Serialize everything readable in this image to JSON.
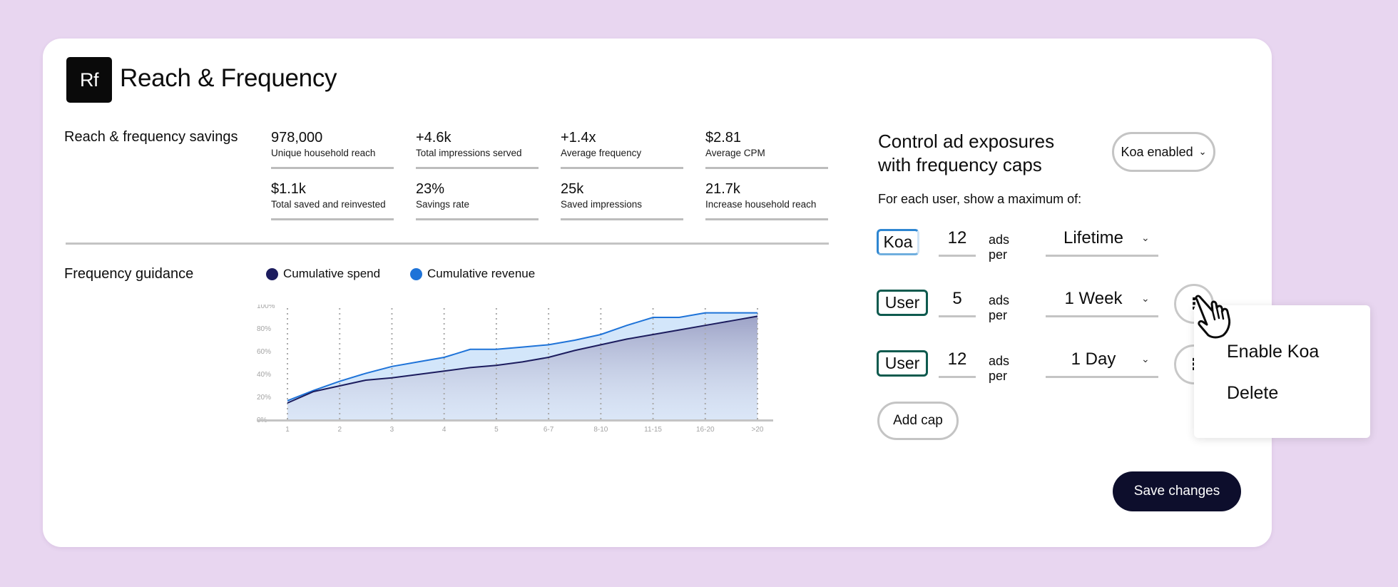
{
  "app": {
    "logo_text": "Rf",
    "title": "Reach & Frequency"
  },
  "savings": {
    "label": "Reach & frequency savings",
    "metrics": [
      {
        "value": "978,000",
        "label": "Unique household reach"
      },
      {
        "value": "+4.6k",
        "label": "Total impressions served"
      },
      {
        "value": "+1.4x",
        "label": "Average frequency"
      },
      {
        "value": "$2.81",
        "label": "Average CPM"
      },
      {
        "value": "$1.1k",
        "label": "Total saved and reinvested"
      },
      {
        "value": "23%",
        "label": "Savings rate"
      },
      {
        "value": "25k",
        "label": "Saved impressions"
      },
      {
        "value": "21.7k",
        "label": "Increase household reach"
      }
    ]
  },
  "guidance": {
    "label": "Frequency guidance",
    "legend": [
      {
        "name": "Cumulative spend",
        "color": "#1c1c5e"
      },
      {
        "name": "Cumulative revenue",
        "color": "#1e73d8"
      }
    ]
  },
  "chart_data": {
    "type": "area",
    "categories": [
      "1",
      "2",
      "3",
      "4",
      "5",
      "6-7",
      "8-10",
      "11-15",
      "16-20",
      ">20"
    ],
    "x": [
      1,
      1.5,
      2,
      2.5,
      3,
      3.5,
      4,
      4.5,
      5,
      5.5,
      6,
      6.5,
      7,
      7.5,
      8,
      8.5,
      9,
      9.5,
      10
    ],
    "y_ticks": [
      "0%",
      "20%",
      "40%",
      "60%",
      "70%",
      "80%",
      "100%"
    ],
    "y_ticks_shown": [
      "0%",
      "20%",
      "40%",
      "60%",
      "80%",
      "100%"
    ],
    "ylim": [
      0,
      100
    ],
    "series": [
      {
        "name": "Cumulative revenue",
        "color": "#1e73d8",
        "values": [
          17,
          26,
          34,
          41,
          47,
          51,
          55,
          62,
          62,
          64,
          66,
          70,
          75,
          83,
          90,
          90,
          94,
          94,
          94
        ]
      },
      {
        "name": "Cumulative spend",
        "color": "#1c1c5e",
        "values": [
          15,
          25,
          30,
          35,
          37,
          40,
          43,
          46,
          48,
          51,
          55,
          61,
          66,
          71,
          75,
          79,
          83,
          87,
          91
        ]
      }
    ],
    "grid": "vertical-dotted",
    "legend_position": "top-left"
  },
  "caps": {
    "title_line1": "Control ad exposures",
    "title_line2": "with frequency caps",
    "koa_button": "Koa enabled",
    "instruction": "For each user, show a maximum of:",
    "ads_per": "ads per",
    "rows": [
      {
        "tag": "Koa",
        "count": "12",
        "period": "Lifetime"
      },
      {
        "tag": "User",
        "count": "5",
        "period": "1 Week"
      },
      {
        "tag": "User",
        "count": "12",
        "period": "1 Day"
      }
    ],
    "add_cap": "Add cap",
    "save": "Save changes"
  },
  "context_menu": {
    "items": [
      "Enable Koa",
      "Delete"
    ]
  },
  "icons": {
    "chevron": "chevron-down-icon",
    "kebab": "kebab-vertical-icon",
    "cursor": "hand-pointer-icon"
  }
}
